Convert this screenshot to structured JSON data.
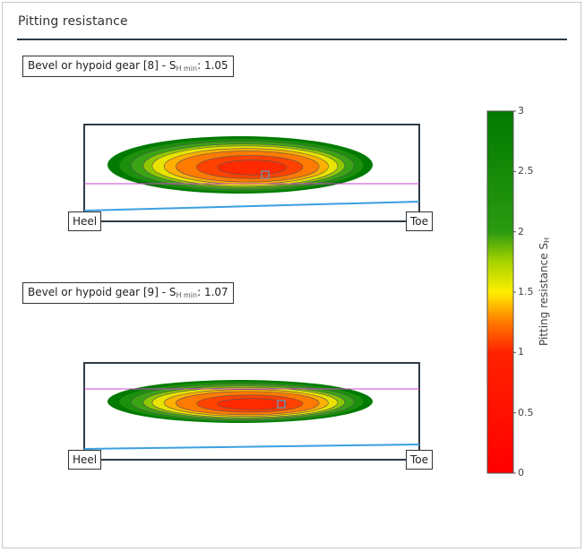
{
  "panel": {
    "title": "Pitting resistance"
  },
  "chart_data": {
    "type": "heatmap",
    "title": "Pitting resistance",
    "colorbar": {
      "label_main": "Pitting resistance S",
      "label_sub": "H",
      "min": 0,
      "max": 3,
      "ticks": [
        "0",
        "0.5",
        "1",
        "1.5",
        "2",
        "2.5",
        "3"
      ],
      "stops": [
        {
          "v": 0.0,
          "color": "#ff0000"
        },
        {
          "v": 1.0,
          "color": "#ff2200"
        },
        {
          "v": 1.25,
          "color": "#ff7a00"
        },
        {
          "v": 1.5,
          "color": "#ffee00"
        },
        {
          "v": 1.75,
          "color": "#a8d400"
        },
        {
          "v": 2.0,
          "color": "#2a9a10"
        },
        {
          "v": 3.0,
          "color": "#007a00"
        }
      ]
    },
    "plots": [
      {
        "label_pre": "Bevel or hypoid gear [8] - S",
        "label_sub": "H min",
        "label_post": ": 1.05",
        "smin": 1.05,
        "heel": "Heel",
        "toe": "Toe"
      },
      {
        "label_pre": "Bevel or hypoid gear [9] - S",
        "label_sub": "H min",
        "label_post": ": 1.07",
        "smin": 1.07,
        "heel": "Heel",
        "toe": "Toe"
      }
    ]
  }
}
